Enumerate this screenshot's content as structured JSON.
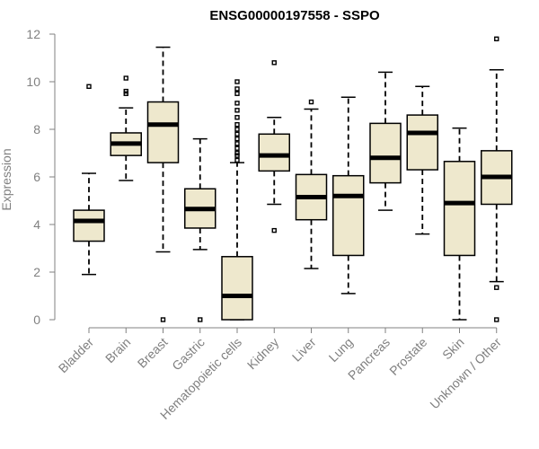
{
  "chart_data": {
    "type": "boxplot",
    "title": "ENSG00000197558 - SSPO",
    "xlabel": "",
    "ylabel": "Expression",
    "ylim": [
      0,
      12
    ],
    "yticks": [
      0,
      2,
      4,
      6,
      8,
      10,
      12
    ],
    "box_color": "#EEE8CD",
    "categories": [
      "Bladder",
      "Brain",
      "Breast",
      "Gastric",
      "Hematopoietic cells",
      "Kidney",
      "Liver",
      "Lung",
      "Pancreas",
      "Prostate",
      "Skin",
      "Unknown / Other"
    ],
    "series": [
      {
        "category": "Bladder",
        "min": 1.9,
        "q1": 3.3,
        "median": 4.15,
        "q3": 4.6,
        "max": 6.15,
        "outliers": [
          9.8
        ]
      },
      {
        "category": "Brain",
        "min": 5.85,
        "q1": 6.9,
        "median": 7.4,
        "q3": 7.85,
        "max": 8.9,
        "outliers": [
          9.5,
          9.6,
          10.15
        ]
      },
      {
        "category": "Breast",
        "min": 2.85,
        "q1": 6.6,
        "median": 8.2,
        "q3": 9.15,
        "max": 11.45,
        "outliers": [
          0.0
        ]
      },
      {
        "category": "Gastric",
        "min": 2.95,
        "q1": 3.85,
        "median": 4.65,
        "q3": 5.5,
        "max": 7.6,
        "outliers": [
          0.0
        ]
      },
      {
        "category": "Hematopoietic cells",
        "min": 0.0,
        "q1": 0.0,
        "median": 1.0,
        "q3": 2.65,
        "max": 6.6,
        "outliers": [
          6.7,
          6.9,
          7.0,
          7.2,
          7.4,
          7.6,
          7.8,
          8.0,
          8.2,
          8.5,
          8.8,
          9.1,
          9.5,
          9.7,
          10.0
        ]
      },
      {
        "category": "Kidney",
        "min": 4.85,
        "q1": 6.25,
        "median": 6.9,
        "q3": 7.8,
        "max": 8.5,
        "outliers": [
          3.75,
          10.8
        ]
      },
      {
        "category": "Liver",
        "min": 2.15,
        "q1": 4.2,
        "median": 5.15,
        "q3": 6.1,
        "max": 8.85,
        "outliers": [
          9.15
        ]
      },
      {
        "category": "Lung",
        "min": 1.1,
        "q1": 2.7,
        "median": 5.2,
        "q3": 6.05,
        "max": 9.35,
        "outliers": []
      },
      {
        "category": "Pancreas",
        "min": 4.6,
        "q1": 5.75,
        "median": 6.8,
        "q3": 8.25,
        "max": 10.4,
        "outliers": []
      },
      {
        "category": "Prostate",
        "min": 3.6,
        "q1": 6.3,
        "median": 7.85,
        "q3": 8.6,
        "max": 9.8,
        "outliers": []
      },
      {
        "category": "Skin",
        "min": 0.0,
        "q1": 2.7,
        "median": 4.9,
        "q3": 6.65,
        "max": 8.05,
        "outliers": []
      },
      {
        "category": "Unknown / Other",
        "min": 1.6,
        "q1": 4.85,
        "median": 6.0,
        "q3": 7.1,
        "max": 10.5,
        "outliers": [
          0.0,
          1.35,
          11.8
        ]
      }
    ]
  }
}
